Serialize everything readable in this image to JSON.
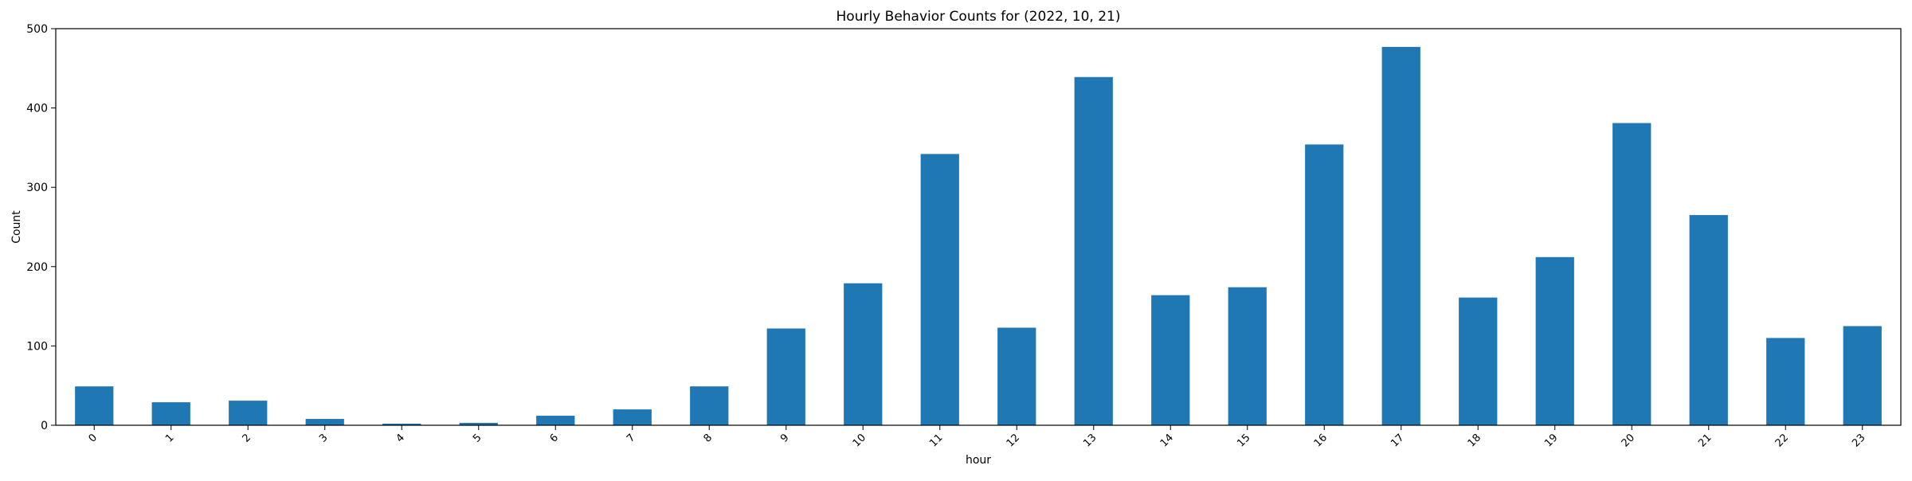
{
  "chart_data": {
    "type": "bar",
    "title": "Hourly Behavior Counts for (2022, 10, 21)",
    "xlabel": "hour",
    "ylabel": "Count",
    "categories": [
      "0",
      "1",
      "2",
      "3",
      "4",
      "5",
      "6",
      "7",
      "8",
      "9",
      "10",
      "11",
      "12",
      "13",
      "14",
      "15",
      "16",
      "17",
      "18",
      "19",
      "20",
      "21",
      "22",
      "23"
    ],
    "values": [
      49,
      29,
      31,
      8,
      2,
      3,
      12,
      20,
      49,
      122,
      179,
      342,
      123,
      439,
      164,
      174,
      354,
      477,
      161,
      212,
      381,
      265,
      110,
      125
    ],
    "ylim": [
      0,
      500
    ],
    "yticks": [
      0,
      100,
      200,
      300,
      400,
      500
    ],
    "grid": false,
    "legend": "none",
    "bar_color": "#1f77b4"
  }
}
